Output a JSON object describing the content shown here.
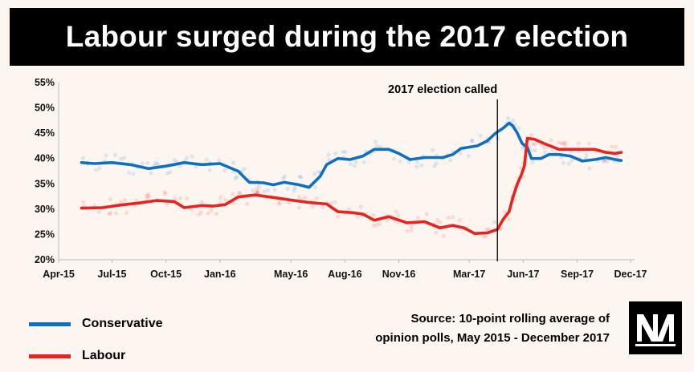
{
  "title": "Labour surged during the 2017 election",
  "chart_data": {
    "type": "line",
    "title": "Labour surged during the 2017 election",
    "xlabel": "",
    "ylabel": "",
    "ylim": [
      20,
      55
    ],
    "xlim": [
      "2015-04-01",
      "2017-12-01"
    ],
    "yticks": [
      "20%",
      "25%",
      "30%",
      "35%",
      "40%",
      "45%",
      "50%",
      "55%"
    ],
    "xticks": [
      {
        "date": "2015-04-01",
        "label": "Apr-15"
      },
      {
        "date": "2015-07-01",
        "label": "Jul-15"
      },
      {
        "date": "2015-10-01",
        "label": "Oct-15"
      },
      {
        "date": "2016-01-01",
        "label": "Jan-16"
      },
      {
        "date": "2016-05-01",
        "label": "May-16"
      },
      {
        "date": "2016-08-01",
        "label": "Aug-16"
      },
      {
        "date": "2016-11-01",
        "label": "Nov-16"
      },
      {
        "date": "2017-03-01",
        "label": "Mar-17"
      },
      {
        "date": "2017-06-01",
        "label": "Jun-17"
      },
      {
        "date": "2017-09-01",
        "label": "Sep-17"
      },
      {
        "date": "2017-12-01",
        "label": "Dec-17"
      }
    ],
    "grid": false,
    "annotation": {
      "date": "2017-04-18",
      "label": "2017 election called"
    },
    "series": [
      {
        "name": "Conservative",
        "color": "#1070c0",
        "points": [
          [
            "2015-05-10",
            39.2
          ],
          [
            "2015-06-01",
            39.0
          ],
          [
            "2015-07-01",
            39.2
          ],
          [
            "2015-08-01",
            38.8
          ],
          [
            "2015-09-01",
            38.0
          ],
          [
            "2015-10-01",
            38.5
          ],
          [
            "2015-11-01",
            39.2
          ],
          [
            "2015-12-01",
            38.8
          ],
          [
            "2016-01-01",
            39.0
          ],
          [
            "2016-02-01",
            37.5
          ],
          [
            "2016-02-20",
            35.3
          ],
          [
            "2016-03-15",
            35.2
          ],
          [
            "2016-04-01",
            34.8
          ],
          [
            "2016-04-20",
            35.3
          ],
          [
            "2016-05-15",
            34.8
          ],
          [
            "2016-06-01",
            34.3
          ],
          [
            "2016-06-20",
            36.5
          ],
          [
            "2016-07-01",
            38.8
          ],
          [
            "2016-07-20",
            40.0
          ],
          [
            "2016-08-10",
            39.8
          ],
          [
            "2016-09-01",
            40.5
          ],
          [
            "2016-09-20",
            41.8
          ],
          [
            "2016-10-15",
            41.8
          ],
          [
            "2016-11-01",
            41.0
          ],
          [
            "2016-11-20",
            39.8
          ],
          [
            "2016-12-15",
            40.2
          ],
          [
            "2017-01-15",
            40.2
          ],
          [
            "2017-02-01",
            40.8
          ],
          [
            "2017-02-15",
            42.0
          ],
          [
            "2017-03-15",
            42.5
          ],
          [
            "2017-04-01",
            43.5
          ],
          [
            "2017-04-15",
            45.0
          ],
          [
            "2017-04-28",
            46.0
          ],
          [
            "2017-05-08",
            47.0
          ],
          [
            "2017-05-14",
            46.5
          ],
          [
            "2017-05-22",
            45.0
          ],
          [
            "2017-05-30",
            43.0
          ],
          [
            "2017-06-08",
            42.2
          ],
          [
            "2017-06-15",
            40.0
          ],
          [
            "2017-07-01",
            40.0
          ],
          [
            "2017-07-15",
            40.8
          ],
          [
            "2017-08-01",
            40.8
          ],
          [
            "2017-08-20",
            40.5
          ],
          [
            "2017-09-10",
            39.5
          ],
          [
            "2017-10-01",
            39.8
          ],
          [
            "2017-10-20",
            40.2
          ],
          [
            "2017-11-05",
            39.8
          ],
          [
            "2017-11-15",
            39.6
          ]
        ]
      },
      {
        "name": "Labour",
        "color": "#e8221e",
        "points": [
          [
            "2015-05-10",
            30.2
          ],
          [
            "2015-06-15",
            30.3
          ],
          [
            "2015-07-15",
            30.8
          ],
          [
            "2015-08-15",
            31.2
          ],
          [
            "2015-09-15",
            31.7
          ],
          [
            "2015-10-15",
            31.5
          ],
          [
            "2015-11-01",
            30.3
          ],
          [
            "2015-12-01",
            30.7
          ],
          [
            "2015-12-20",
            30.6
          ],
          [
            "2016-01-10",
            30.9
          ],
          [
            "2016-02-01",
            32.4
          ],
          [
            "2016-03-01",
            32.8
          ],
          [
            "2016-04-01",
            32.3
          ],
          [
            "2016-05-01",
            31.8
          ],
          [
            "2016-06-01",
            31.3
          ],
          [
            "2016-07-01",
            31.0
          ],
          [
            "2016-07-20",
            29.5
          ],
          [
            "2016-08-15",
            29.3
          ],
          [
            "2016-09-01",
            29.0
          ],
          [
            "2016-09-20",
            27.8
          ],
          [
            "2016-10-15",
            28.5
          ],
          [
            "2016-11-15",
            27.3
          ],
          [
            "2016-12-15",
            27.5
          ],
          [
            "2017-01-10",
            26.3
          ],
          [
            "2017-02-01",
            26.8
          ],
          [
            "2017-02-20",
            26.3
          ],
          [
            "2017-03-10",
            25.2
          ],
          [
            "2017-04-01",
            25.3
          ],
          [
            "2017-04-18",
            26.0
          ],
          [
            "2017-04-28",
            28.0
          ],
          [
            "2017-05-08",
            29.5
          ],
          [
            "2017-05-15",
            32.5
          ],
          [
            "2017-05-22",
            35.0
          ],
          [
            "2017-05-28",
            36.5
          ],
          [
            "2017-06-03",
            38.5
          ],
          [
            "2017-06-08",
            44.0
          ],
          [
            "2017-06-20",
            43.8
          ],
          [
            "2017-07-10",
            42.8
          ],
          [
            "2017-08-01",
            41.8
          ],
          [
            "2017-09-01",
            41.8
          ],
          [
            "2017-10-01",
            41.8
          ],
          [
            "2017-10-20",
            41.2
          ],
          [
            "2017-11-05",
            41.0
          ],
          [
            "2017-11-15",
            41.2
          ]
        ]
      }
    ]
  },
  "legend": [
    {
      "label": "Conservative",
      "color": "#1070c0"
    },
    {
      "label": "Labour",
      "color": "#e8221e"
    }
  ],
  "source": {
    "line1": "Source: 10-point rolling average of",
    "line2": "opinion polls, May 2015 - December 2017"
  },
  "logo": {
    "icon": "newstatesman-logo-icon"
  }
}
